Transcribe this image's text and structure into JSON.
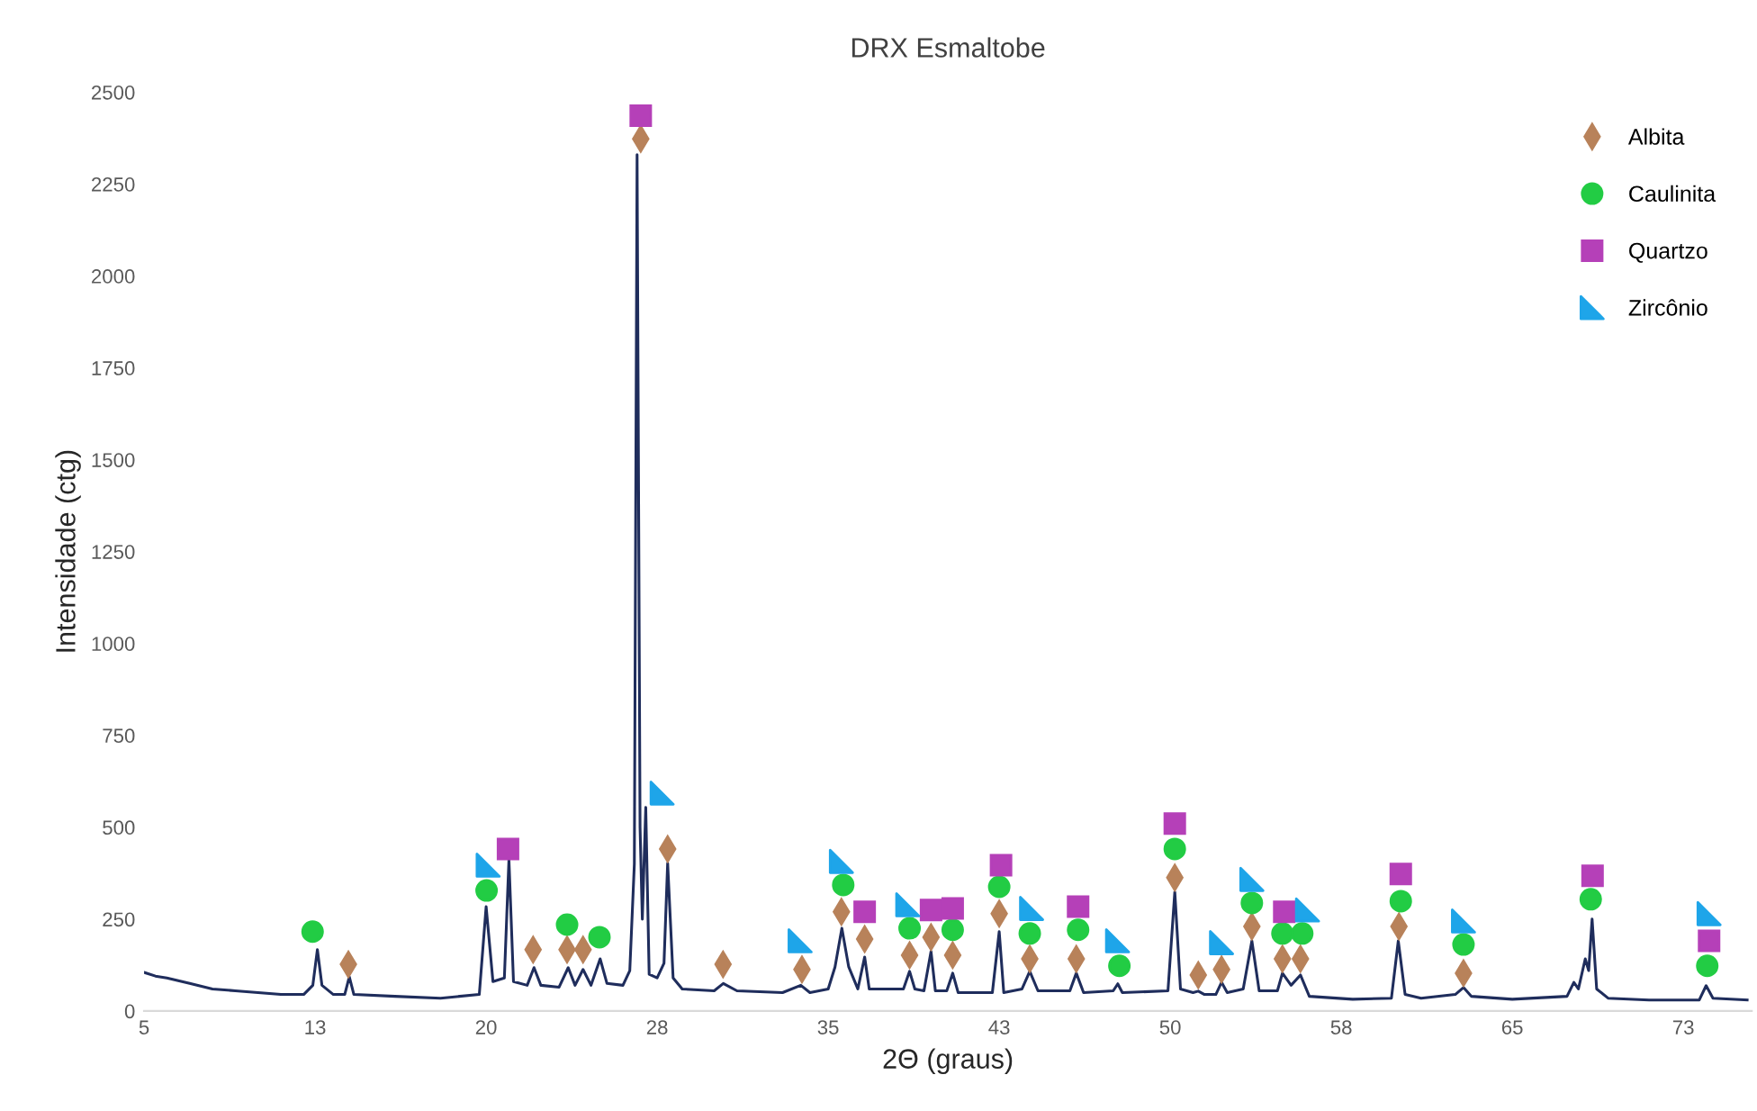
{
  "chart_data": {
    "type": "line",
    "title": "DRX Esmaltobe",
    "xlabel": "2Θ (graus)",
    "ylabel": "Intensidade (ctg)",
    "xlim": [
      5,
      75.5
    ],
    "ylim": [
      0,
      2500
    ],
    "xticks": [
      5,
      {
        "value": 12.5,
        "label": "13"
      },
      20,
      {
        "value": 27.5,
        "label": "28"
      },
      35,
      {
        "value": 42.5,
        "label": "43"
      },
      50,
      {
        "value": 57.5,
        "label": "58"
      },
      65,
      {
        "value": 72.5,
        "label": "73"
      }
    ],
    "yticks": [
      0,
      250,
      500,
      750,
      1000,
      1250,
      1500,
      1750,
      2000,
      2250,
      2500
    ],
    "grid": false,
    "legend": "top right",
    "series": [
      {
        "color": "#1f2d5c",
        "marker": "none",
        "x": [
          5,
          5.5,
          6,
          7,
          8,
          9,
          10,
          11,
          12,
          12.4,
          12.6,
          12.8,
          13.3,
          13.8,
          14.0,
          14.2,
          16,
          18,
          19.7,
          20.0,
          20.3,
          20.8,
          21.0,
          21.2,
          21.8,
          22.1,
          22.4,
          23.2,
          23.6,
          23.9,
          24.25,
          24.6,
          25.0,
          25.3,
          26.0,
          26.3,
          26.5,
          26.62,
          26.75,
          26.85,
          27.0,
          27.15,
          27.5,
          27.8,
          27.96,
          28.2,
          28.6,
          30,
          30.4,
          31,
          33,
          33.8,
          34.2,
          35.0,
          35.3,
          35.6,
          35.9,
          36.3,
          36.6,
          36.8,
          38.3,
          38.57,
          38.8,
          39.2,
          39.51,
          39.7,
          40.2,
          40.46,
          40.7,
          42.2,
          42.5,
          42.7,
          43.5,
          43.84,
          44.2,
          45.6,
          45.88,
          46.2,
          47.5,
          47.7,
          47.9,
          49.9,
          50.2,
          50.45,
          51.0,
          51.23,
          51.5,
          52.0,
          52.25,
          52.5,
          53.2,
          53.58,
          53.9,
          54.7,
          54.92,
          55.3,
          55.71,
          56.1,
          58,
          59.7,
          60.0,
          60.3,
          61,
          62.5,
          62.86,
          63.2,
          65,
          67.4,
          67.7,
          67.9,
          68.2,
          68.35,
          68.5,
          68.7,
          69.2,
          71,
          73.2,
          73.5,
          73.8,
          75.3
        ],
        "values": [
          105,
          95,
          90,
          75,
          60,
          55,
          50,
          45,
          45,
          70,
          167,
          70,
          45,
          45,
          93,
          45,
          40,
          35,
          45,
          284,
          80,
          90,
          412,
          80,
          70,
          118,
          70,
          65,
          118,
          70,
          113,
          70,
          142,
          75,
          70,
          110,
          400,
          2330,
          500,
          250,
          554,
          100,
          90,
          130,
          402,
          90,
          60,
          55,
          75,
          55,
          50,
          70,
          50,
          60,
          120,
          225,
          120,
          60,
          147,
          60,
          60,
          108,
          60,
          55,
          162,
          55,
          55,
          103,
          50,
          50,
          216,
          50,
          60,
          108,
          55,
          55,
          103,
          50,
          55,
          74,
          50,
          55,
          324,
          60,
          50,
          54,
          45,
          45,
          78,
          50,
          60,
          191,
          55,
          55,
          103,
          70,
          98,
          40,
          32,
          35,
          191,
          45,
          35,
          45,
          64,
          40,
          32,
          40,
          78,
          60,
          142,
          110,
          250,
          60,
          35,
          30,
          30,
          69,
          35,
          30
        ]
      },
      {
        "type": "scatter",
        "name": "Albita",
        "color": "#b8825a",
        "marker": "diamond",
        "x": [
          13.96,
          22.06,
          23.55,
          24.25,
          26.78,
          27.96,
          30.39,
          33.85,
          35.58,
          36.6,
          38.57,
          39.51,
          40.46,
          42.5,
          43.84,
          45.88,
          50.2,
          51.23,
          52.25,
          53.58,
          54.92,
          55.71,
          60.03,
          62.86
        ],
        "values": [
          127,
          167,
          167,
          167,
          2373,
          441,
          127,
          113,
          270,
          196,
          152,
          201,
          152,
          265,
          142,
          142,
          363,
          98,
          113,
          230,
          142,
          142,
          230,
          103
        ]
      },
      {
        "type": "scatter",
        "name": "Caulinita",
        "color": "#22cc44",
        "marker": "circle",
        "x": [
          12.39,
          20.02,
          23.55,
          24.97,
          35.66,
          38.57,
          40.46,
          42.5,
          43.84,
          45.96,
          47.77,
          50.2,
          53.58,
          54.92,
          55.79,
          60.11,
          62.86,
          68.44,
          73.55
        ],
        "values": [
          216,
          328,
          235,
          201,
          343,
          225,
          221,
          338,
          211,
          221,
          123,
          441,
          294,
          211,
          211,
          299,
          181,
          304,
          123
        ]
      },
      {
        "type": "scatter",
        "name": "Quartzo",
        "color": "#b540b8",
        "marker": "square",
        "x": [
          20.96,
          26.78,
          36.6,
          39.51,
          40.46,
          42.58,
          45.96,
          50.2,
          55.0,
          60.11,
          68.52,
          73.63
        ],
        "values": [
          441,
          2436,
          270,
          275,
          279,
          397,
          284,
          510,
          270,
          373,
          368,
          191
        ]
      },
      {
        "type": "scatter",
        "name": "Zircônio",
        "color": "#1ea5e9",
        "marker": "triangle",
        "x": [
          20.09,
          27.72,
          33.77,
          35.58,
          38.49,
          43.92,
          47.69,
          52.25,
          53.58,
          56.02,
          62.86,
          73.63
        ],
        "values": [
          397,
          593,
          191,
          407,
          289,
          279,
          191,
          186,
          358,
          275,
          245,
          265
        ]
      }
    ]
  }
}
